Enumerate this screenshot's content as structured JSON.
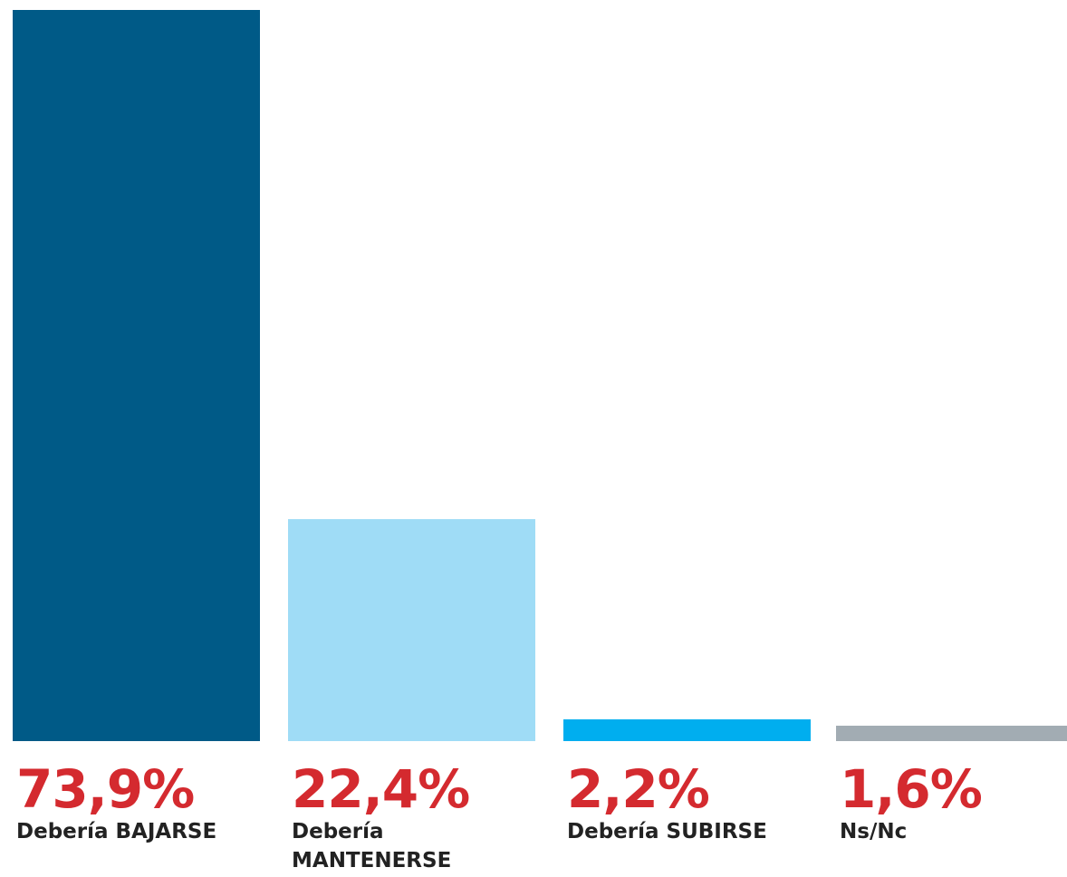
{
  "chart_data": {
    "type": "bar",
    "categories": [
      "Debería BAJARSE",
      "Debería MANTENERSE",
      "Debería SUBIRSE",
      "Ns/Nc"
    ],
    "values": [
      73.9,
      22.4,
      2.2,
      1.6
    ],
    "value_labels": [
      "73,9%",
      "22,4%",
      "2,2%",
      "1,6%"
    ],
    "colors": [
      "#005a87",
      "#9fdcf6",
      "#00aeef",
      "#a2acb3"
    ],
    "value_label_color": "#d42a2f",
    "ylim": [
      0,
      73.9
    ],
    "grid": false,
    "legend": "none"
  }
}
